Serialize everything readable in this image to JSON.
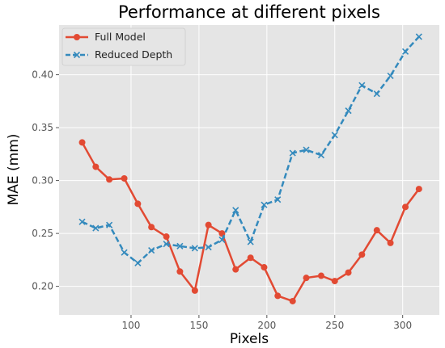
{
  "chart_data": {
    "type": "line",
    "title": "Performance at different pixels",
    "xlabel": "Pixels",
    "ylabel": "MAE (mm)",
    "xlim": [
      47,
      327
    ],
    "ylim": [
      0.173,
      0.447
    ],
    "xticks": [
      100,
      150,
      200,
      250,
      300
    ],
    "yticks": [
      0.2,
      0.25,
      0.3,
      0.35,
      0.4
    ],
    "xtick_labels": [
      "100",
      "150",
      "200",
      "250",
      "300"
    ],
    "ytick_labels": [
      "0.20",
      "0.25",
      "0.30",
      "0.35",
      "0.40"
    ],
    "grid": true,
    "legend_position": "top-left",
    "background": "#e5e5e5",
    "series": [
      {
        "name": "Full Model",
        "color": "#e24a33",
        "line_style": "solid",
        "marker": "circle",
        "x": [
          64,
          74,
          84,
          95,
          105,
          115,
          126,
          136,
          147,
          157,
          167,
          177,
          188,
          198,
          208,
          219,
          229,
          240,
          250,
          260,
          270,
          281,
          291,
          302,
          312
        ],
        "y": [
          0.336,
          0.313,
          0.301,
          0.302,
          0.278,
          0.256,
          0.247,
          0.214,
          0.196,
          0.258,
          0.25,
          0.216,
          0.227,
          0.218,
          0.191,
          0.186,
          0.208,
          0.21,
          0.205,
          0.213,
          0.23,
          0.253,
          0.241,
          0.275,
          0.292
        ]
      },
      {
        "name": "Reduced Depth",
        "color": "#348abd",
        "line_style": "dashed",
        "marker": "x",
        "x": [
          64,
          74,
          84,
          95,
          105,
          115,
          126,
          136,
          147,
          157,
          167,
          177,
          188,
          198,
          208,
          219,
          229,
          240,
          250,
          260,
          270,
          281,
          291,
          302,
          312
        ],
        "y": [
          0.261,
          0.255,
          0.258,
          0.232,
          0.222,
          0.234,
          0.24,
          0.238,
          0.236,
          0.237,
          0.244,
          0.272,
          0.242,
          0.277,
          0.282,
          0.326,
          0.329,
          0.324,
          0.343,
          0.366,
          0.39,
          0.382,
          0.399,
          0.422,
          0.436
        ]
      }
    ]
  }
}
